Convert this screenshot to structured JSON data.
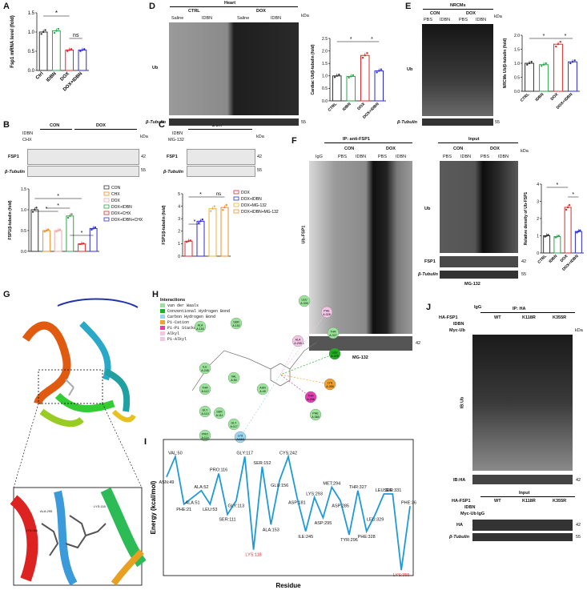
{
  "panels": {
    "A": {
      "label": "A",
      "ylabel": "Fsp1 mRNA level (fold)",
      "categories": [
        "Ctrl",
        "IDBN",
        "DOX",
        "DOX+IDBN"
      ],
      "sig1": "*",
      "sig2": "ns"
    },
    "B": {
      "label": "B",
      "header_groups": [
        "CON",
        "DOX"
      ],
      "row_labels": [
        "IDBN",
        "CHX"
      ],
      "kda": "kDa",
      "blot_rows": [
        "FSP1",
        "β-Tubulin"
      ],
      "mw": [
        "42",
        "55"
      ],
      "ylabel": "FSP1/β-tubulin (fold)",
      "legend": [
        "CON",
        "CHX",
        "DOX",
        "DOX+IDBN",
        "DOX+CHX",
        "DOX+IDBN+CHX"
      ],
      "sig": "*"
    },
    "C": {
      "label": "C",
      "header_groups": [
        "DOX"
      ],
      "row_labels": [
        "IDBN",
        "MG-132"
      ],
      "kda": "kDa",
      "blot_rows": [
        "FSP1",
        "β-Tubulin"
      ],
      "mw": [
        "42",
        "55"
      ],
      "ylabel": "FSP1/β-tubulin (fold)",
      "legend": [
        "DOX",
        "DOX+IDBN",
        "DOX+MG-132",
        "DOX+IDBN+MG-132"
      ],
      "sig": "*",
      "ns": "ns"
    },
    "D": {
      "label": "D",
      "header": "Heart",
      "groups": [
        "CTRL",
        "DOX"
      ],
      "sub": [
        "Saline",
        "IDBN",
        "Saline",
        "IDBN"
      ],
      "kda": "kDa",
      "row": "Ub",
      "tubulin": "β-Tubulin",
      "mw": "55",
      "ylabel": "Cardiac Ub/β-tubulin (fold)",
      "categories": [
        "CTRL",
        "IDBN",
        "DOX",
        "DOX+IDBN"
      ],
      "sig": "*"
    },
    "E": {
      "label": "E",
      "header": "NRCMs",
      "groups": [
        "CON",
        "DOX"
      ],
      "sub": [
        "PBS",
        "IDBN",
        "PBS",
        "IDBN"
      ],
      "kda": "kDa",
      "row": "Ub",
      "tubulin": "β-Tubulin",
      "mw": "55",
      "ylabel": "NRCMs Ub/β-tubulin (fold)",
      "categories": [
        "CTRL",
        "IDBN",
        "DOX",
        "DOX+IDBN"
      ],
      "sig": "*"
    },
    "F": {
      "label": "F",
      "ip_title": "IP: anti-FSP1",
      "input_title": "Input",
      "groups": [
        "CON",
        "DOX"
      ],
      "sub": [
        "PBS",
        "IDBN",
        "PBS",
        "IDBN"
      ],
      "igg": "IgG",
      "kda": "kDa",
      "ub_fsp1": "Ub-FSP1",
      "fsp1": "FSP1",
      "ub": "Ub",
      "tubulin": "β-Tubulin",
      "mw": [
        "42",
        "55"
      ],
      "mg": "MG-132",
      "ylabel": "Relative density of Ub-FSP1",
      "categories": [
        "CTRL",
        "IDBN",
        "DOX",
        "DOX+IDBN"
      ],
      "sig": "*"
    },
    "G": {
      "label": "G",
      "residues": [
        "ALA:295",
        "LYS:118",
        "LYS:355"
      ]
    },
    "H": {
      "label": "H",
      "legend_title": "Interactions",
      "legend": [
        {
          "name": "van der Waals",
          "color": "#9be39b"
        },
        {
          "name": "Conventional Hydrogen Bond",
          "color": "#22b022"
        },
        {
          "name": "Carbon Hydrogen Bond",
          "color": "#9bd5f0"
        },
        {
          "name": "Pi-Cation",
          "color": "#f0a030"
        },
        {
          "name": "Pi-Pi Stacked",
          "color": "#e040b0"
        },
        {
          "name": "Alkyl",
          "color": "#f3c6e6"
        },
        {
          "name": "Pi-Alkyl",
          "color": "#f3c6e6"
        }
      ],
      "residues": [
        {
          "name": "LEU A:330",
          "kind": "vdw"
        },
        {
          "name": "PHE A:328",
          "kind": "alkyl"
        },
        {
          "name": "ALA A:153",
          "kind": "vdw"
        },
        {
          "name": "SER A:152",
          "kind": "vdw"
        },
        {
          "name": "THR A:327",
          "kind": "vdw"
        },
        {
          "name": "ALA A:295",
          "kind": "alkyl"
        },
        {
          "name": "LEU A:329",
          "kind": "hbond"
        },
        {
          "name": "ILE A:245",
          "kind": "vdw"
        },
        {
          "name": "VAL A:50",
          "kind": "vdw"
        },
        {
          "name": "THR A:112",
          "kind": "vdw"
        },
        {
          "name": "ASN A:49",
          "kind": "vdw"
        },
        {
          "name": "LYS A:355",
          "kind": "pication"
        },
        {
          "name": "THR A:296",
          "kind": "pipi"
        },
        {
          "name": "GLY A:113",
          "kind": "vdw"
        },
        {
          "name": "SER A:111",
          "kind": "vdw"
        },
        {
          "name": "GLY A:117",
          "kind": "vdw"
        },
        {
          "name": "PHE A:360",
          "kind": "vdw"
        },
        {
          "name": "PRO A:114",
          "kind": "vdw"
        },
        {
          "name": "LYS A:118",
          "kind": "carbon"
        }
      ]
    },
    "J": {
      "label": "J",
      "ip_title": "IP: HA",
      "igg": "IgG",
      "row_labels": [
        "HA-FSP1",
        "IDBN",
        "Myc-Ub"
      ],
      "groups": [
        "WT",
        "K118R",
        "K355R"
      ],
      "kda": "kDa",
      "ib_ub": "IB:Ub",
      "ib_ha": "IB:HA",
      "mw": "42",
      "input_title": "Input",
      "ha": "HA",
      "tubulin": "β-Tubulin",
      "mw2": [
        "42",
        "55"
      ]
    }
  },
  "chart_data": [
    {
      "type": "bar",
      "title": "",
      "xlabel": "",
      "ylabel": "Fsp1 mRNA level (fold)",
      "categories": [
        "Ctrl",
        "IDBN",
        "DOX",
        "DOX+IDBN"
      ],
      "values": [
        1.0,
        1.03,
        0.53,
        0.53
      ],
      "ylim": [
        0.0,
        1.5
      ],
      "yticks": [
        "0.0",
        "0.5",
        "1.0",
        "1.5"
      ],
      "colors": [
        "#333333",
        "#2aa84a",
        "#e0292b",
        "#2b2bd8"
      ]
    },
    {
      "type": "bar",
      "title": "",
      "xlabel": "",
      "ylabel": "FSP1/β-tubulin (fold)",
      "categories": [
        "CON",
        "CHX",
        "DOX",
        "DOX+IDBN",
        "DOX+CHX",
        "DOX+IDBN+CHX"
      ],
      "values": [
        1.0,
        0.5,
        0.5,
        0.85,
        0.18,
        0.55
      ],
      "ylim": [
        0.0,
        1.5
      ],
      "yticks": [
        "0.0",
        "0.5",
        "1.0",
        "1.5"
      ],
      "colors": [
        "#333333",
        "#f0902a",
        "#f2a7a7",
        "#2aa84a",
        "#e0292b",
        "#2b2bd8"
      ]
    },
    {
      "type": "bar",
      "title": "",
      "xlabel": "",
      "ylabel": "FSP1/β-tubulin (fold)",
      "categories": [
        "DOX",
        "DOX+IDBN",
        "DOX+MG-132",
        "DOX+IDBN+MG-132"
      ],
      "values": [
        1.2,
        2.8,
        3.8,
        3.9
      ],
      "ylim": [
        0,
        5
      ],
      "yticks": [
        "0",
        "1",
        "2",
        "3",
        "4",
        "5"
      ],
      "colors": [
        "#e0292b",
        "#2b2bd8",
        "#f0b040",
        "#f0902a"
      ]
    },
    {
      "type": "bar",
      "title": "",
      "xlabel": "",
      "ylabel": "Cardiac Ub/β-tubulin (fold)",
      "categories": [
        "CTRL",
        "IDBN",
        "DOX",
        "DOX+IDBN"
      ],
      "values": [
        1.0,
        0.98,
        1.82,
        1.2
      ],
      "ylim": [
        0.0,
        2.5
      ],
      "yticks": [
        "0.0",
        "0.5",
        "1.0",
        "1.5",
        "2.0",
        "2.5"
      ],
      "colors": [
        "#333333",
        "#2aa84a",
        "#e0292b",
        "#2b2bd8"
      ]
    },
    {
      "type": "bar",
      "title": "",
      "xlabel": "",
      "ylabel": "NRCMs Ub/β-tubulin (fold)",
      "categories": [
        "CTRL",
        "IDBN",
        "DOX",
        "DOX+IDBN"
      ],
      "values": [
        1.0,
        0.95,
        1.68,
        1.05
      ],
      "ylim": [
        0.0,
        2.0
      ],
      "yticks": [
        "0.0",
        "0.5",
        "1.0",
        "1.5",
        "2.0"
      ],
      "colors": [
        "#333333",
        "#2aa84a",
        "#e0292b",
        "#2b2bd8"
      ]
    },
    {
      "type": "bar",
      "title": "",
      "xlabel": "",
      "ylabel": "Relative density of Ub-FSP1",
      "categories": [
        "CTRL",
        "IDBN",
        "DOX",
        "DOX+IDBN"
      ],
      "values": [
        1.0,
        0.95,
        2.65,
        1.25
      ],
      "ylim": [
        0,
        4
      ],
      "yticks": [
        "0",
        "1",
        "2",
        "3",
        "4"
      ],
      "colors": [
        "#333333",
        "#2aa84a",
        "#e0292b",
        "#2b2bd8"
      ]
    },
    {
      "type": "line",
      "title": "",
      "xlabel": "Residue",
      "ylabel": "Energy (kcal/mol)",
      "ylim": [
        -1.8,
        0.2
      ],
      "points": [
        {
          "name": "ASN:49",
          "y": -0.35
        },
        {
          "name": "VAL:50",
          "y": -0.05
        },
        {
          "name": "PHE:21",
          "y": -0.75
        },
        {
          "name": "ALA:51",
          "y": -0.65
        },
        {
          "name": "ALA:52",
          "y": -0.55
        },
        {
          "name": "LEU:53",
          "y": -0.75
        },
        {
          "name": "PRO:116",
          "y": -0.3
        },
        {
          "name": "SER:111",
          "y": -0.9
        },
        {
          "name": "GLY:113",
          "y": -0.7
        },
        {
          "name": "GLY:117",
          "y": -0.05
        },
        {
          "name": "LYS:118",
          "y": -1.42
        },
        {
          "name": "SER:152",
          "y": -0.2
        },
        {
          "name": "ALA:153",
          "y": -1.05
        },
        {
          "name": "GLU:156",
          "y": -0.4
        },
        {
          "name": "CYS:242",
          "y": -0.05
        },
        {
          "name": "ASP:181",
          "y": -0.65
        },
        {
          "name": "ILE:245",
          "y": -1.15
        },
        {
          "name": "LYS:293",
          "y": -0.65
        },
        {
          "name": "ASP:295",
          "y": -0.95
        },
        {
          "name": "MET:294",
          "y": -0.5
        },
        {
          "name": "ASP:285",
          "y": -0.7
        },
        {
          "name": "TYR:296",
          "y": -1.2
        },
        {
          "name": "THR:327",
          "y": -0.55
        },
        {
          "name": "PHE:328",
          "y": -1.15
        },
        {
          "name": "LEU:329",
          "y": -0.9
        },
        {
          "name": "LEU:330",
          "y": -0.6
        },
        {
          "name": "SER:331",
          "y": -0.6
        },
        {
          "name": "LYS:355",
          "y": -1.72
        },
        {
          "name": "PHE:360",
          "y": -0.78
        }
      ],
      "highlight": [
        "LYS:118",
        "LYS:355"
      ],
      "label": "I"
    }
  ]
}
